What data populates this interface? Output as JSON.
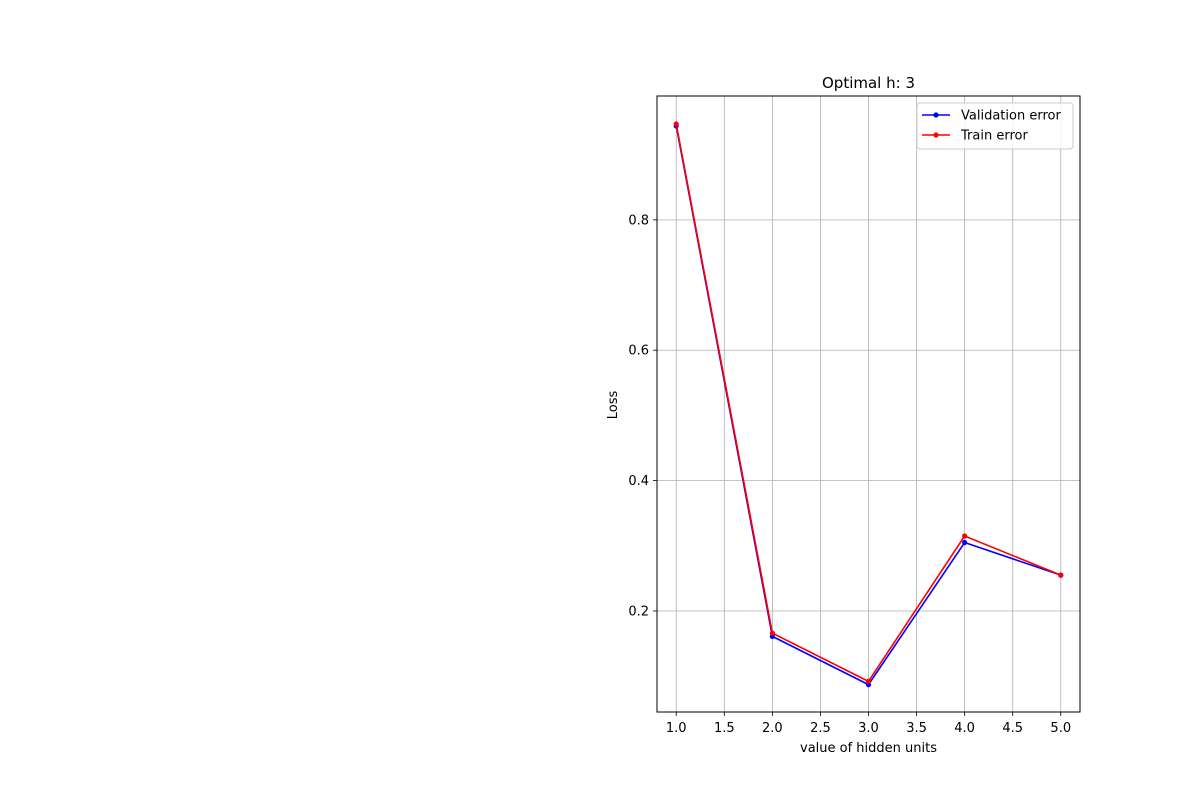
{
  "chart_data": {
    "type": "line",
    "title": "Optimal h: 3",
    "xlabel": "value of hidden units",
    "ylabel": "Loss",
    "x": [
      1,
      2,
      3,
      4,
      5
    ],
    "xlim": [
      0.8,
      5.2
    ],
    "ylim": [
      0.045,
      0.99
    ],
    "xticks": [
      1.0,
      1.5,
      2.0,
      2.5,
      3.0,
      3.5,
      4.0,
      4.5,
      5.0
    ],
    "xtick_labels": [
      "1.0",
      "1.5",
      "2.0",
      "2.5",
      "3.0",
      "3.5",
      "4.0",
      "4.5",
      "5.0"
    ],
    "yticks": [
      0.2,
      0.4,
      0.6,
      0.8
    ],
    "ytick_labels": [
      "0.2",
      "0.4",
      "0.6",
      "0.8"
    ],
    "grid": true,
    "legend_position": "top-right",
    "series": [
      {
        "name": "Validation error",
        "color": "#0000ff",
        "values": [
          0.944,
          0.161,
          0.087,
          0.305,
          0.255
        ]
      },
      {
        "name": "Train error",
        "color": "#ff0000",
        "values": [
          0.947,
          0.166,
          0.092,
          0.315,
          0.255
        ]
      }
    ]
  }
}
